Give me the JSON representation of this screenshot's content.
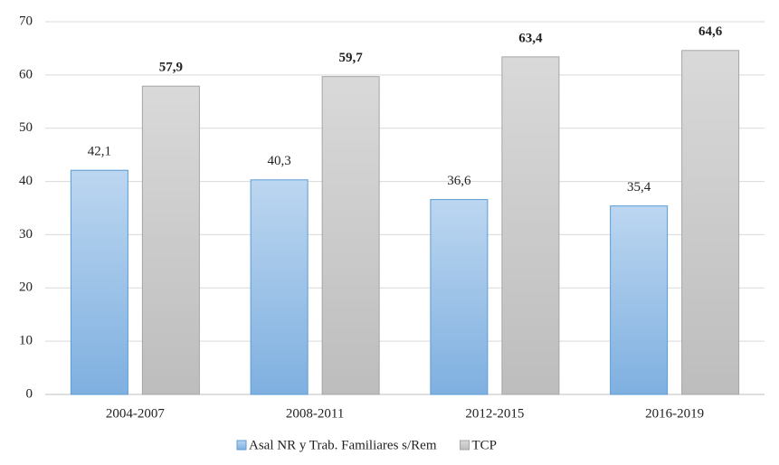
{
  "chart_data": {
    "type": "bar",
    "categories": [
      "2004-2007",
      "2008-2011",
      "2012-2015",
      "2016-2019"
    ],
    "series": [
      {
        "name": "Asal NR y Trab. Familiares s/Rem",
        "color": "#9dc3e6",
        "values": [
          42.1,
          40.3,
          36.6,
          35.4
        ],
        "value_labels": [
          "42,1",
          "40,3",
          "36,6",
          "35,4"
        ]
      },
      {
        "name": "TCP",
        "color": "#c9c9c9",
        "values": [
          57.9,
          59.7,
          63.4,
          64.6
        ],
        "value_labels": [
          "57,9",
          "59,7",
          "63,4",
          "64,6"
        ]
      }
    ],
    "ylim": [
      0,
      70
    ],
    "yticks": [
      0,
      10,
      20,
      30,
      40,
      50,
      60,
      70
    ],
    "grid": true,
    "legend": "bottom"
  }
}
